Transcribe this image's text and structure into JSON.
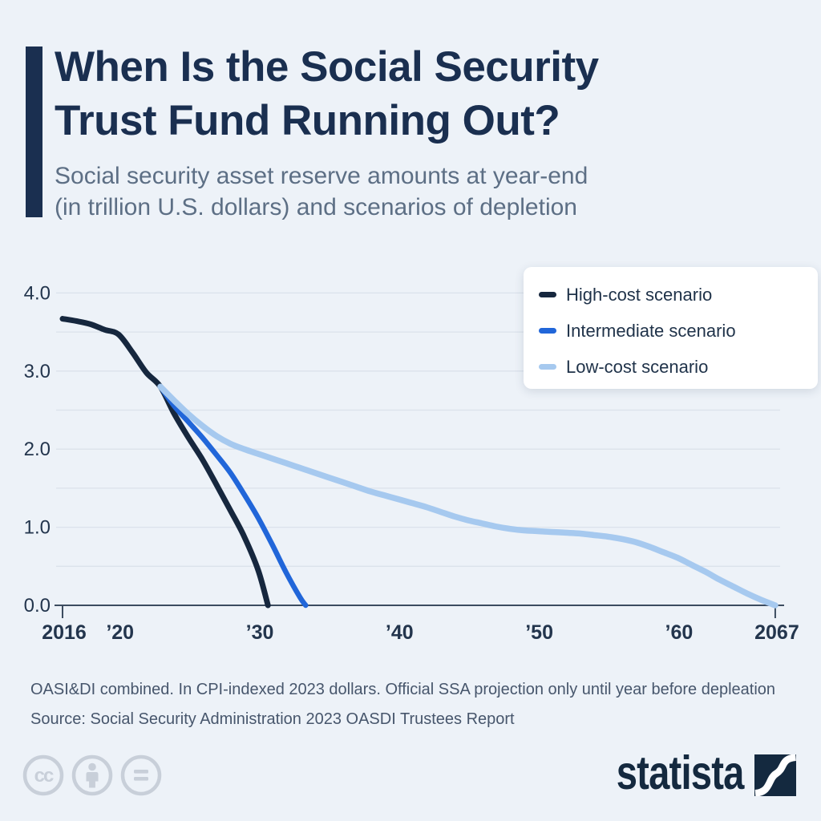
{
  "header": {
    "title_lines": [
      "When Is the Social Security",
      "Trust Fund Running Out?"
    ],
    "subtitle_lines": [
      "Social security asset reserve amounts at year-end",
      "(in trillion U.S. dollars) and scenarios of depletion"
    ]
  },
  "chart_data": {
    "type": "line",
    "title": "When Is the Social Security Trust Fund Running Out?",
    "unit": "trillion U.S. dollars",
    "x_range": [
      2016,
      2067
    ],
    "y_range": [
      0,
      4
    ],
    "y_gridline_step": 0.5,
    "grid": true,
    "legend_position": "top-right",
    "x_ticks": [
      {
        "x": 2016,
        "label": "2016"
      },
      {
        "x": 2020,
        "label": "’20"
      },
      {
        "x": 2030,
        "label": "’30"
      },
      {
        "x": 2040,
        "label": "’40"
      },
      {
        "x": 2050,
        "label": "’50"
      },
      {
        "x": 2060,
        "label": "’60"
      },
      {
        "x": 2067,
        "label": "2067"
      }
    ],
    "y_ticks": [
      {
        "y": 0,
        "label": "0.0"
      },
      {
        "y": 1,
        "label": "1.0"
      },
      {
        "y": 2,
        "label": "2.0"
      },
      {
        "y": 3,
        "label": "3.0"
      },
      {
        "y": 4,
        "label": "4.0"
      }
    ],
    "series": [
      {
        "name": "High-cost scenario",
        "color": "#16273e",
        "stroke_width": 7,
        "points": [
          [
            2016,
            3.67
          ],
          [
            2017,
            3.64
          ],
          [
            2018,
            3.6
          ],
          [
            2019,
            3.53
          ],
          [
            2020,
            3.47
          ],
          [
            2021,
            3.24
          ],
          [
            2022,
            2.98
          ],
          [
            2023,
            2.8
          ],
          [
            2024,
            2.45
          ],
          [
            2025,
            2.15
          ],
          [
            2026,
            1.87
          ],
          [
            2027,
            1.55
          ],
          [
            2028,
            1.22
          ],
          [
            2029,
            0.88
          ],
          [
            2030,
            0.45
          ],
          [
            2030.7,
            0
          ]
        ]
      },
      {
        "name": "Intermediate scenario",
        "color": "#2166d9",
        "stroke_width": 6.5,
        "points": [
          [
            2023,
            2.8
          ],
          [
            2024,
            2.55
          ],
          [
            2025,
            2.35
          ],
          [
            2026,
            2.15
          ],
          [
            2027,
            1.93
          ],
          [
            2028,
            1.7
          ],
          [
            2029,
            1.42
          ],
          [
            2030,
            1.12
          ],
          [
            2031,
            0.78
          ],
          [
            2032,
            0.42
          ],
          [
            2033,
            0.1
          ],
          [
            2033.4,
            0
          ]
        ]
      },
      {
        "name": "Low-cost scenario",
        "color": "#a6c9ef",
        "stroke_width": 7.5,
        "points": [
          [
            2023,
            2.8
          ],
          [
            2024,
            2.62
          ],
          [
            2025,
            2.45
          ],
          [
            2026,
            2.3
          ],
          [
            2027,
            2.17
          ],
          [
            2028,
            2.07
          ],
          [
            2029,
            2.0
          ],
          [
            2030,
            1.94
          ],
          [
            2031,
            1.88
          ],
          [
            2032,
            1.82
          ],
          [
            2033,
            1.76
          ],
          [
            2034,
            1.7
          ],
          [
            2035,
            1.64
          ],
          [
            2036,
            1.58
          ],
          [
            2037,
            1.52
          ],
          [
            2038,
            1.46
          ],
          [
            2039,
            1.41
          ],
          [
            2040,
            1.36
          ],
          [
            2041,
            1.31
          ],
          [
            2042,
            1.26
          ],
          [
            2043,
            1.2
          ],
          [
            2044,
            1.14
          ],
          [
            2045,
            1.09
          ],
          [
            2046,
            1.05
          ],
          [
            2047,
            1.01
          ],
          [
            2048,
            0.98
          ],
          [
            2049,
            0.96
          ],
          [
            2050,
            0.95
          ],
          [
            2051,
            0.94
          ],
          [
            2052,
            0.93
          ],
          [
            2053,
            0.92
          ],
          [
            2054,
            0.9
          ],
          [
            2055,
            0.88
          ],
          [
            2056,
            0.85
          ],
          [
            2057,
            0.81
          ],
          [
            2058,
            0.75
          ],
          [
            2059,
            0.68
          ],
          [
            2060,
            0.61
          ],
          [
            2061,
            0.52
          ],
          [
            2062,
            0.43
          ],
          [
            2063,
            0.33
          ],
          [
            2064,
            0.24
          ],
          [
            2065,
            0.15
          ],
          [
            2066,
            0.07
          ],
          [
            2067,
            0
          ]
        ]
      }
    ]
  },
  "footer": {
    "note": "OASI&DI combined. In CPI-indexed 2023 dollars. Official SSA projection only until year before depleation",
    "source": "Source: Social Security Administration 2023 OASDI Trustees Report"
  },
  "branding": {
    "logo_text": "statista",
    "cc_icons": [
      "cc-icon",
      "attribution-person-icon",
      "equals-icon"
    ]
  },
  "colors": {
    "background": "#edf2f8",
    "title_navy": "#1a2f50",
    "subtitle_gray": "#5d6f85",
    "gridline": "#dbe2eb",
    "axis_line": "#3c4c60",
    "axis_label": "#23354d",
    "footer_text": "#47566c",
    "legend_text": "#1f3249",
    "cc_gray": "#c8cfd9",
    "logo_navy": "#14293f",
    "high_cost": "#16273e",
    "intermediate": "#2166d9",
    "low_cost": "#a6c9ef"
  }
}
